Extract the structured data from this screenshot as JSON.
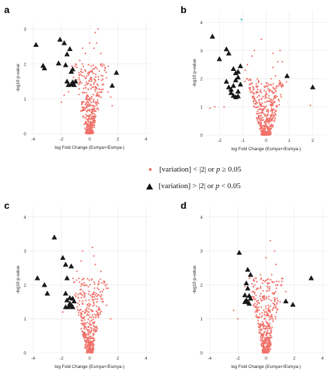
{
  "colors": {
    "nonsig": "#f07068",
    "sig": "#1a1a1a",
    "highlight": "#4fd1c5",
    "grid": "#ececec",
    "axis": "#333333"
  },
  "legend": {
    "nonsig_prefix": "[variation] < |2|  or ",
    "nonsig_p": "p",
    "nonsig_suffix": " ≥ 0.05",
    "sig_prefix": "[variation] > |2|  or ",
    "sig_p": "p",
    "sig_suffix": "  <  0.05"
  },
  "chart_data": [
    {
      "type": "scatter",
      "panel": "a",
      "xlabel": "log Fold Change (Esmya+/Esmya-)",
      "ylabel": "-log10 p-value",
      "xlim": [
        -4.3,
        4.3
      ],
      "ylim": [
        0,
        3.2
      ],
      "xticks": [
        "-4",
        "-2",
        "0",
        "2",
        "4"
      ],
      "yticks": [
        "0",
        "1",
        "2",
        "3"
      ],
      "grid": true,
      "significant": [
        [
          -3.8,
          2.55
        ],
        [
          -3.3,
          1.95
        ],
        [
          -3.2,
          1.88
        ],
        [
          -2.1,
          2.7
        ],
        [
          -2.2,
          2.02
        ],
        [
          -1.8,
          2.6
        ],
        [
          -1.6,
          2.28
        ],
        [
          -1.7,
          1.97
        ],
        [
          -1.4,
          2.43
        ],
        [
          -1.2,
          1.85
        ],
        [
          -1.3,
          1.78
        ],
        [
          -1.6,
          1.5
        ],
        [
          -1.5,
          1.4
        ],
        [
          -1.3,
          1.42
        ],
        [
          -1.2,
          1.48
        ],
        [
          -1.0,
          1.5
        ],
        [
          -1.1,
          1.4
        ],
        [
          1.6,
          1.38
        ],
        [
          1.9,
          1.75
        ]
      ],
      "outliers": [
        [
          0.4,
          2.9
        ],
        [
          0.6,
          3.0
        ],
        [
          0.0,
          2.6
        ],
        [
          0.3,
          2.45
        ],
        [
          -0.3,
          2.3
        ],
        [
          0.5,
          2.6
        ],
        [
          0.8,
          2.3
        ],
        [
          0.9,
          2.0
        ],
        [
          1.1,
          1.9
        ],
        [
          1.3,
          1.2
        ],
        [
          1.5,
          1.05
        ],
        [
          1.6,
          0.8
        ],
        [
          -1.5,
          1.2
        ],
        [
          -1.8,
          1.1
        ],
        [
          -2.0,
          0.9
        ],
        [
          1.2,
          1.6
        ],
        [
          0.9,
          1.4
        ],
        [
          -0.7,
          2.1
        ],
        [
          -0.9,
          1.9
        ],
        [
          -0.5,
          2.45
        ]
      ],
      "cloud": {
        "spread": 0.55,
        "count": 420,
        "ymax": 2.0,
        "seed": 11
      }
    },
    {
      "type": "scatter",
      "panel": "b",
      "xlabel": "log Fold Change (Esmya+/Esmya-)",
      "ylabel": "-log10 p-value",
      "xlim": [
        -2.6,
        2.6
      ],
      "ylim": [
        0,
        4.4
      ],
      "xticks": [
        "-2",
        "-1",
        "0",
        "1",
        "2"
      ],
      "yticks": [
        "0",
        "1",
        "2",
        "3",
        "4"
      ],
      "grid": true,
      "significant": [
        [
          -2.3,
          3.5
        ],
        [
          -2.0,
          2.7
        ],
        [
          -1.7,
          3.05
        ],
        [
          -1.6,
          2.9
        ],
        [
          -1.7,
          1.9
        ],
        [
          -1.6,
          1.7
        ],
        [
          -1.4,
          1.75
        ],
        [
          -1.5,
          1.62
        ],
        [
          -1.5,
          1.5
        ],
        [
          -1.4,
          1.4
        ],
        [
          -1.3,
          1.35
        ],
        [
          -1.2,
          1.38
        ],
        [
          -1.4,
          2.35
        ],
        [
          -1.3,
          2.2
        ],
        [
          -1.2,
          2.05
        ],
        [
          -1.3,
          1.95
        ],
        [
          -1.1,
          1.8
        ],
        [
          -1.2,
          2.25
        ],
        [
          -1.1,
          2.45
        ],
        [
          -1.2,
          1.55
        ],
        [
          0.9,
          2.1
        ],
        [
          2.0,
          1.7
        ]
      ],
      "highlight": [
        [
          -1.05,
          4.1
        ]
      ],
      "outliers": [
        [
          -0.5,
          3.0
        ],
        [
          -0.6,
          2.8
        ],
        [
          0.3,
          2.9
        ],
        [
          0.5,
          2.6
        ],
        [
          0.6,
          3.0
        ],
        [
          0.7,
          2.6
        ],
        [
          -0.2,
          3.4
        ],
        [
          0.4,
          2.1
        ],
        [
          -0.8,
          2.5
        ],
        [
          -0.9,
          2.3
        ],
        [
          0.7,
          1.8
        ],
        [
          -1.8,
          1.0
        ],
        [
          -2.2,
          1.0
        ],
        [
          -2.4,
          0.95
        ],
        [
          1.9,
          1.05
        ],
        [
          -0.9,
          1.9
        ],
        [
          0.3,
          2.4
        ]
      ],
      "cloud": {
        "spread": 0.35,
        "count": 460,
        "ymax": 2.0,
        "seed": 23
      }
    },
    {
      "type": "scatter",
      "panel": "c",
      "xlabel": "log Fold Change (Esmya+/Esmya-)",
      "ylabel": "-log10 p-value",
      "xlim": [
        -4.3,
        4.3
      ],
      "ylim": [
        0,
        4.3
      ],
      "xticks": [
        "-4",
        "-2",
        "0",
        "2",
        "4"
      ],
      "yticks": [
        "0",
        "1",
        "2",
        "3",
        "4"
      ],
      "grid": true,
      "significant": [
        [
          -2.5,
          3.4
        ],
        [
          -1.9,
          2.8
        ],
        [
          -1.7,
          2.6
        ],
        [
          -1.3,
          2.55
        ],
        [
          -1.6,
          2.2
        ],
        [
          -3.7,
          2.2
        ],
        [
          -3.2,
          2.0
        ],
        [
          -3.0,
          1.75
        ],
        [
          -1.7,
          1.75
        ],
        [
          -1.4,
          1.62
        ],
        [
          -1.6,
          1.55
        ],
        [
          -1.2,
          1.6
        ],
        [
          -1.4,
          1.45
        ],
        [
          -1.3,
          1.4
        ],
        [
          -1.5,
          1.35
        ],
        [
          -1.7,
          1.35
        ],
        [
          -1.1,
          1.52
        ],
        [
          -1.2,
          1.35
        ]
      ],
      "outliers": [
        [
          0.2,
          3.1
        ],
        [
          0.4,
          2.6
        ],
        [
          0.6,
          2.0
        ],
        [
          0.9,
          1.8
        ],
        [
          1.2,
          1.4
        ],
        [
          1.5,
          1.0
        ],
        [
          -0.6,
          2.7
        ],
        [
          -0.9,
          2.4
        ],
        [
          -0.5,
          3.0
        ],
        [
          0.3,
          2.85
        ],
        [
          1.0,
          2.1
        ],
        [
          -1.9,
          1.2
        ],
        [
          1.3,
          1.9
        ],
        [
          0.8,
          2.4
        ]
      ],
      "cloud": {
        "spread": 0.5,
        "count": 420,
        "ymax": 2.2,
        "seed": 37
      }
    },
    {
      "type": "scatter",
      "panel": "d",
      "xlabel": "log Fold Change (Esmya+/Esmya-)",
      "ylabel": "-log10 p-value",
      "xlim": [
        -4.3,
        4.3
      ],
      "ylim": [
        0,
        4.3
      ],
      "xticks": [
        "-4",
        "-2",
        "0",
        "2",
        "4"
      ],
      "yticks": [
        "0",
        "1",
        "2",
        "3",
        "4"
      ],
      "grid": true,
      "significant": [
        [
          -1.9,
          2.95
        ],
        [
          -1.3,
          2.45
        ],
        [
          -1.1,
          2.3
        ],
        [
          -1.4,
          2.05
        ],
        [
          -1.3,
          1.9
        ],
        [
          -1.5,
          1.7
        ],
        [
          -1.2,
          1.68
        ],
        [
          -1.4,
          1.55
        ],
        [
          -1.3,
          1.5
        ],
        [
          -1.2,
          1.45
        ],
        [
          -1.5,
          1.5
        ],
        [
          -1.1,
          1.6
        ],
        [
          1.4,
          1.52
        ],
        [
          1.9,
          1.42
        ],
        [
          3.2,
          2.2
        ]
      ],
      "outliers": [
        [
          0.3,
          3.3
        ],
        [
          0.6,
          3.0
        ],
        [
          0.0,
          2.8
        ],
        [
          0.4,
          2.3
        ],
        [
          0.9,
          2.1
        ],
        [
          1.1,
          2.0
        ],
        [
          -0.4,
          2.3
        ],
        [
          -0.7,
          2.2
        ],
        [
          -1.5,
          1.95
        ],
        [
          -2.3,
          1.25
        ],
        [
          -2.0,
          1.0
        ],
        [
          1.4,
          1.8
        ],
        [
          1.0,
          1.5
        ],
        [
          -0.9,
          1.8
        ],
        [
          0.7,
          2.6
        ]
      ],
      "cloud": {
        "spread": 0.5,
        "count": 420,
        "ymax": 2.2,
        "seed": 53
      }
    }
  ]
}
